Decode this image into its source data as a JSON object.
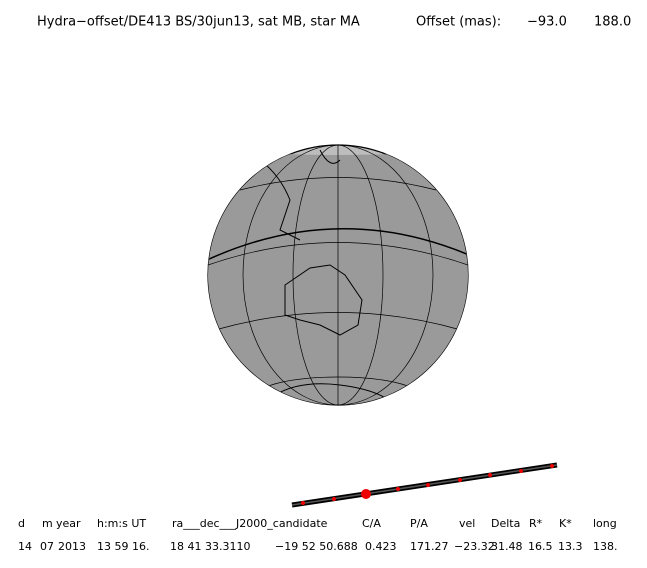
{
  "header": {
    "title": "Hydra−offset/DE413 BS/30jun13, sat MB, star MA",
    "offset_label": "Offset (mas):",
    "offset_values": [
      "−93.0",
      "188.0"
    ]
  },
  "table": {
    "columns": [
      "d",
      "m",
      "year",
      "h:m:s UT",
      "ra___dec___J2000_candidate",
      "C/A",
      "P/A",
      "vel",
      "Delta",
      "R*",
      "K*",
      "long"
    ],
    "rows": [
      [
        "14",
        "07",
        "2013",
        "13 59 16.",
        "18 41 33.3110",
        "−19 52 50.688",
        "0.423",
        "171.27",
        "−23.32",
        "31.48",
        "16.5",
        "13.3",
        "138."
      ]
    ]
  }
}
